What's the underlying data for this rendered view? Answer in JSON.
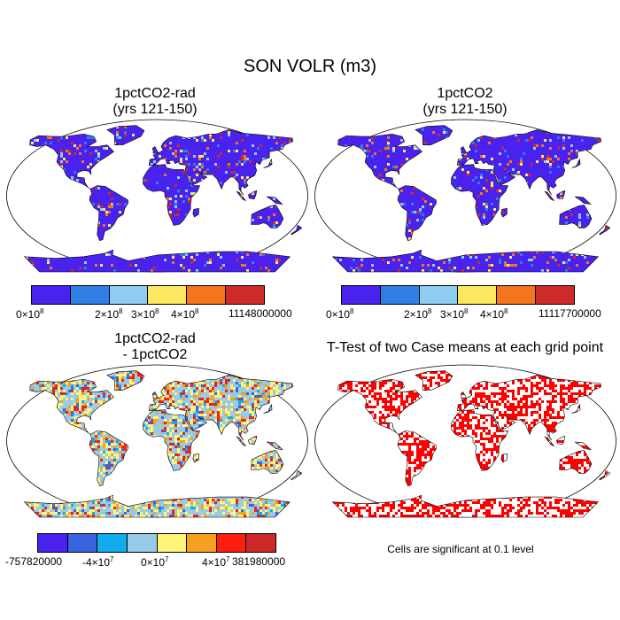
{
  "title": "SON VOLR (m3)",
  "panels": [
    {
      "line1": "1pctCO2-rad",
      "line2": "(yrs 121-150)"
    },
    {
      "line1": "1pctCO2",
      "line2": "(yrs 121-150)"
    },
    {
      "line1": "1pctCO2-rad",
      "line2": "- 1pctCO2"
    },
    {
      "line1": "T-Test of two Case means at each grid point",
      "line2": ""
    }
  ],
  "colorbars": {
    "abs": {
      "colors": [
        "#4a22f0",
        "#2f7fe6",
        "#8fcdf0",
        "#fde760",
        "#f5751d",
        "#cf2a2a"
      ],
      "left": {
        "labels": [
          "0×10",
          "2×10",
          "3×10",
          "4×10"
        ],
        "exp": "8",
        "max": "11148000000"
      },
      "right": {
        "labels": [
          "0×10",
          "2×10",
          "3×10",
          "4×10"
        ],
        "exp": "8",
        "max": "11117700000"
      }
    },
    "diff": {
      "colors": [
        "#4a22f0",
        "#3b64e0",
        "#14aaee",
        "#98cbe6",
        "#fff47a",
        "#f6a020",
        "#fe1e0e",
        "#cc2a2a"
      ],
      "min": "-757820000",
      "label_a": "-4×10",
      "label_b": "0×10",
      "label_c": "4×10",
      "exp": "7",
      "max": "381980000"
    }
  },
  "note": "Cells are significant at 0.1 level"
}
